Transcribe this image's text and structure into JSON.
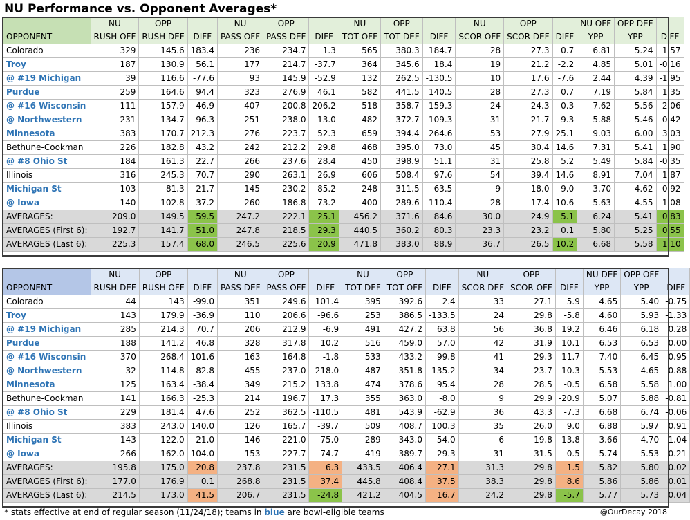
{
  "title": "NU Performance vs. Opponent Averages*",
  "offense": {
    "header_top": [
      "",
      "NU",
      "OPP",
      "",
      "NU",
      "OPP",
      "",
      "NU",
      "OPP",
      "",
      "NU",
      "OPP",
      "",
      "NU OFF",
      "OPP DEF",
      ""
    ],
    "header_bottom": [
      "OPPONENT",
      "RUSH OFF",
      "RUSH DEF",
      "DIFF",
      "PASS OFF",
      "PASS DEF",
      "DIFF",
      "TOT OFF",
      "TOT DEF",
      "DIFF",
      "SCOR OFF",
      "SCOR DEF",
      "DIFF",
      "YPP",
      "YPP",
      "DIFF"
    ],
    "rows": [
      {
        "team": "Colorado",
        "bowl": false,
        "vals": [
          "329",
          "145.6",
          "183.4",
          "236",
          "234.7",
          "1.3",
          "565",
          "380.3",
          "184.7",
          "28",
          "27.3",
          "0.7",
          "6.81",
          "5.24",
          "1.57"
        ]
      },
      {
        "team": "Troy",
        "bowl": true,
        "vals": [
          "187",
          "130.9",
          "56.1",
          "177",
          "214.7",
          "-37.7",
          "364",
          "345.6",
          "18.4",
          "19",
          "21.2",
          "-2.2",
          "4.85",
          "5.01",
          "-0.16"
        ]
      },
      {
        "team": "@ #19 Michigan",
        "bowl": true,
        "vals": [
          "39",
          "116.6",
          "-77.6",
          "93",
          "145.9",
          "-52.9",
          "132",
          "262.5",
          "-130.5",
          "10",
          "17.6",
          "-7.6",
          "2.44",
          "4.39",
          "-1.95"
        ]
      },
      {
        "team": "Purdue",
        "bowl": true,
        "vals": [
          "259",
          "164.6",
          "94.4",
          "323",
          "276.9",
          "46.1",
          "582",
          "441.5",
          "140.5",
          "28",
          "27.3",
          "0.7",
          "7.19",
          "5.84",
          "1.35"
        ]
      },
      {
        "team": "@ #16 Wisconsin",
        "bowl": true,
        "vals": [
          "111",
          "157.9",
          "-46.9",
          "407",
          "200.8",
          "206.2",
          "518",
          "358.7",
          "159.3",
          "24",
          "24.3",
          "-0.3",
          "7.62",
          "5.56",
          "2.06"
        ]
      },
      {
        "team": "@ Northwestern",
        "bowl": true,
        "vals": [
          "231",
          "134.7",
          "96.3",
          "251",
          "238.0",
          "13.0",
          "482",
          "372.7",
          "109.3",
          "31",
          "21.7",
          "9.3",
          "5.88",
          "5.46",
          "0.42"
        ]
      },
      {
        "team": "Minnesota",
        "bowl": true,
        "vals": [
          "383",
          "170.7",
          "212.3",
          "276",
          "223.7",
          "52.3",
          "659",
          "394.4",
          "264.6",
          "53",
          "27.9",
          "25.1",
          "9.03",
          "6.00",
          "3.03"
        ]
      },
      {
        "team": "Bethune-Cookman",
        "bowl": false,
        "vals": [
          "226",
          "182.8",
          "43.2",
          "242",
          "212.2",
          "29.8",
          "468",
          "395.0",
          "73.0",
          "45",
          "30.4",
          "14.6",
          "7.31",
          "5.41",
          "1.90"
        ]
      },
      {
        "team": "@ #8 Ohio St",
        "bowl": true,
        "vals": [
          "184",
          "161.3",
          "22.7",
          "266",
          "237.6",
          "28.4",
          "450",
          "398.9",
          "51.1",
          "31",
          "25.8",
          "5.2",
          "5.49",
          "5.84",
          "-0.35"
        ]
      },
      {
        "team": "Illinois",
        "bowl": false,
        "vals": [
          "316",
          "245.3",
          "70.7",
          "290",
          "263.1",
          "26.9",
          "606",
          "508.4",
          "97.6",
          "54",
          "39.4",
          "14.6",
          "8.91",
          "7.04",
          "1.87"
        ]
      },
      {
        "team": "Michigan St",
        "bowl": true,
        "vals": [
          "103",
          "81.3",
          "21.7",
          "145",
          "230.2",
          "-85.2",
          "248",
          "311.5",
          "-63.5",
          "9",
          "18.0",
          "-9.0",
          "3.70",
          "4.62",
          "-0.92"
        ]
      },
      {
        "team": "@ Iowa",
        "bowl": true,
        "vals": [
          "140",
          "102.8",
          "37.2",
          "260",
          "186.8",
          "73.2",
          "400",
          "289.6",
          "110.4",
          "28",
          "17.4",
          "10.6",
          "5.63",
          "4.55",
          "1.08"
        ]
      }
    ],
    "averages": [
      {
        "label": "AVERAGES:",
        "vals": [
          "209.0",
          "149.5",
          "59.5",
          "247.2",
          "222.1",
          "25.1",
          "456.2",
          "371.6",
          "84.6",
          "30.0",
          "24.9",
          "5.1",
          "6.24",
          "5.41",
          "0.83"
        ],
        "hl": {
          "2": "g",
          "5": "g",
          "11": "g",
          "14": "g"
        }
      },
      {
        "label": "AVERAGES (First 6):",
        "vals": [
          "192.7",
          "141.7",
          "51.0",
          "247.8",
          "218.5",
          "29.3",
          "440.5",
          "360.2",
          "80.3",
          "23.3",
          "23.2",
          "0.1",
          "5.80",
          "5.25",
          "0.55"
        ],
        "hl": {
          "2": "g",
          "5": "g",
          "14": "g"
        }
      },
      {
        "label": "AVERAGES (Last 6):",
        "vals": [
          "225.3",
          "157.4",
          "68.0",
          "246.5",
          "225.6",
          "20.9",
          "471.8",
          "383.0",
          "88.9",
          "36.7",
          "26.5",
          "10.2",
          "6.68",
          "5.58",
          "1.10"
        ],
        "hl": {
          "2": "g",
          "5": "g",
          "11": "g",
          "14": "g"
        }
      }
    ]
  },
  "defense": {
    "header_top": [
      "",
      "NU",
      "OPP",
      "",
      "NU",
      "OPP",
      "",
      "NU",
      "OPP",
      "",
      "NU",
      "OPP",
      "",
      "NU DEF",
      "OPP OFF",
      ""
    ],
    "header_bottom": [
      "OPPONENT",
      "RUSH DEF",
      "RUSH OFF",
      "DIFF",
      "PASS DEF",
      "PASS OFF",
      "DIFF",
      "TOT DEF",
      "TOT OFF",
      "DIFF",
      "SCOR DEF",
      "SCOR OFF",
      "DIFF",
      "YPP",
      "YPP",
      "DIFF"
    ],
    "rows": [
      {
        "team": "Colorado",
        "bowl": false,
        "vals": [
          "44",
          "143",
          "-99.0",
          "351",
          "249.6",
          "101.4",
          "395",
          "392.6",
          "2.4",
          "33",
          "27.1",
          "5.9",
          "4.65",
          "5.40",
          "-0.75"
        ]
      },
      {
        "team": "Troy",
        "bowl": true,
        "vals": [
          "143",
          "179.9",
          "-36.9",
          "110",
          "206.6",
          "-96.6",
          "253",
          "386.5",
          "-133.5",
          "24",
          "29.8",
          "-5.8",
          "4.60",
          "5.93",
          "-1.33"
        ]
      },
      {
        "team": "@ #19 Michigan",
        "bowl": true,
        "vals": [
          "285",
          "214.3",
          "70.7",
          "206",
          "212.9",
          "-6.9",
          "491",
          "427.2",
          "63.8",
          "56",
          "36.8",
          "19.2",
          "6.46",
          "6.18",
          "0.28"
        ]
      },
      {
        "team": "Purdue",
        "bowl": true,
        "vals": [
          "188",
          "141.2",
          "46.8",
          "328",
          "317.8",
          "10.2",
          "516",
          "459.0",
          "57.0",
          "42",
          "31.9",
          "10.1",
          "6.53",
          "6.53",
          "0.00"
        ]
      },
      {
        "team": "@ #16 Wisconsin",
        "bowl": true,
        "vals": [
          "370",
          "268.4",
          "101.6",
          "163",
          "164.8",
          "-1.8",
          "533",
          "433.2",
          "99.8",
          "41",
          "29.3",
          "11.7",
          "7.40",
          "6.45",
          "0.95"
        ]
      },
      {
        "team": "@ Northwestern",
        "bowl": true,
        "vals": [
          "32",
          "114.8",
          "-82.8",
          "455",
          "237.0",
          "218.0",
          "487",
          "351.8",
          "135.2",
          "34",
          "23.7",
          "10.3",
          "5.53",
          "4.65",
          "0.88"
        ]
      },
      {
        "team": "Minnesota",
        "bowl": true,
        "vals": [
          "125",
          "163.4",
          "-38.4",
          "349",
          "215.2",
          "133.8",
          "474",
          "378.6",
          "95.4",
          "28",
          "28.5",
          "-0.5",
          "6.58",
          "5.58",
          "1.00"
        ]
      },
      {
        "team": "Bethune-Cookman",
        "bowl": false,
        "vals": [
          "141",
          "166.3",
          "-25.3",
          "214",
          "196.7",
          "17.3",
          "355",
          "363.0",
          "-8.0",
          "9",
          "29.9",
          "-20.9",
          "5.07",
          "5.88",
          "-0.81"
        ]
      },
      {
        "team": "@ #8 Ohio St",
        "bowl": true,
        "vals": [
          "229",
          "181.4",
          "47.6",
          "252",
          "362.5",
          "-110.5",
          "481",
          "543.9",
          "-62.9",
          "36",
          "43.3",
          "-7.3",
          "6.68",
          "6.74",
          "-0.06"
        ]
      },
      {
        "team": "Illinois",
        "bowl": false,
        "vals": [
          "383",
          "243.0",
          "140.0",
          "126",
          "165.7",
          "-39.7",
          "509",
          "408.7",
          "100.3",
          "35",
          "26.0",
          "9.0",
          "6.88",
          "5.97",
          "0.91"
        ]
      },
      {
        "team": "Michigan St",
        "bowl": true,
        "vals": [
          "143",
          "122.0",
          "21.0",
          "146",
          "221.0",
          "-75.0",
          "289",
          "343.0",
          "-54.0",
          "6",
          "19.8",
          "-13.8",
          "3.66",
          "4.70",
          "-1.04"
        ]
      },
      {
        "team": "@ Iowa",
        "bowl": true,
        "vals": [
          "266",
          "162.0",
          "104.0",
          "153",
          "227.7",
          "-74.7",
          "419",
          "389.7",
          "29.3",
          "31",
          "31.5",
          "-0.5",
          "5.74",
          "5.53",
          "0.21"
        ]
      }
    ],
    "averages": [
      {
        "label": "AVERAGES:",
        "vals": [
          "195.8",
          "175.0",
          "20.8",
          "237.8",
          "231.5",
          "6.3",
          "433.5",
          "406.4",
          "27.1",
          "31.3",
          "29.8",
          "1.5",
          "5.82",
          "5.80",
          "0.02"
        ],
        "hl": {
          "2": "o",
          "5": "o",
          "8": "o",
          "11": "o"
        }
      },
      {
        "label": "AVERAGES (First 6):",
        "vals": [
          "177.0",
          "176.9",
          "0.1",
          "268.8",
          "231.5",
          "37.4",
          "445.8",
          "408.4",
          "37.5",
          "38.3",
          "29.8",
          "8.6",
          "5.86",
          "5.86",
          "0.01"
        ],
        "hl": {
          "5": "o",
          "8": "o",
          "11": "o"
        }
      },
      {
        "label": "AVERAGES (Last 6):",
        "vals": [
          "214.5",
          "173.0",
          "41.5",
          "206.7",
          "231.5",
          "-24.8",
          "421.2",
          "404.5",
          "16.7",
          "24.2",
          "29.8",
          "-5.7",
          "5.77",
          "5.73",
          "0.04"
        ],
        "hl": {
          "2": "o",
          "5": "g",
          "8": "o",
          "11": "g"
        }
      }
    ]
  },
  "footer": {
    "note_before": "* stats effective at end of regular season (11/24/18); teams in ",
    "note_blue": "blue",
    "note_after": " are bowl-eligible teams",
    "credit": "@OurDecay 2018"
  },
  "colors": {
    "bowl_blue": "#2e74b5",
    "better_green": "#8bc34a",
    "worse_orange": "#f4b183",
    "avg_gray": "#d9d9d9"
  }
}
